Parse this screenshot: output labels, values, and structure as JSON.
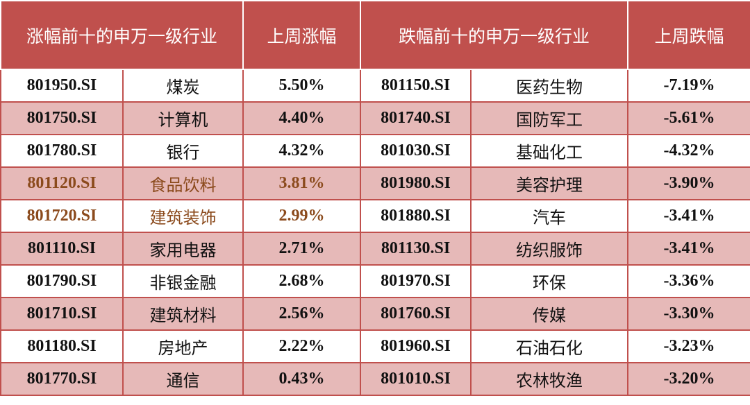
{
  "colors": {
    "header_bg": "#c0504d",
    "header_text": "#ffffff",
    "band_even": "#e6b9b8",
    "band_odd": "#ffffff",
    "highlight_text": "#8b4a1c"
  },
  "headers": [
    "涨幅前十的申万一级行业",
    "上周涨幅",
    "跌幅前十的申万一级行业",
    "上周跌幅"
  ],
  "rows": [
    {
      "up_code": "801950.SI",
      "up_name": "煤炭",
      "up_pct": "5.50%",
      "down_code": "801150.SI",
      "down_name": "医药生物",
      "down_pct": "-7.19%",
      "highlight": false
    },
    {
      "up_code": "801750.SI",
      "up_name": "计算机",
      "up_pct": "4.40%",
      "down_code": "801740.SI",
      "down_name": "国防军工",
      "down_pct": "-5.61%",
      "highlight": false
    },
    {
      "up_code": "801780.SI",
      "up_name": "银行",
      "up_pct": "4.32%",
      "down_code": "801030.SI",
      "down_name": "基础化工",
      "down_pct": "-4.32%",
      "highlight": false
    },
    {
      "up_code": "801120.SI",
      "up_name": "食品饮料",
      "up_pct": "3.81%",
      "down_code": "801980.SI",
      "down_name": "美容护理",
      "down_pct": "-3.90%",
      "highlight": true
    },
    {
      "up_code": "801720.SI",
      "up_name": "建筑装饰",
      "up_pct": "2.99%",
      "down_code": "801880.SI",
      "down_name": "汽车",
      "down_pct": "-3.41%",
      "highlight": true
    },
    {
      "up_code": "801110.SI",
      "up_name": "家用电器",
      "up_pct": "2.71%",
      "down_code": "801130.SI",
      "down_name": "纺织服饰",
      "down_pct": "-3.41%",
      "highlight": false
    },
    {
      "up_code": "801790.SI",
      "up_name": "非银金融",
      "up_pct": "2.68%",
      "down_code": "801970.SI",
      "down_name": "环保",
      "down_pct": "-3.36%",
      "highlight": false
    },
    {
      "up_code": "801710.SI",
      "up_name": "建筑材料",
      "up_pct": "2.56%",
      "down_code": "801760.SI",
      "down_name": "传媒",
      "down_pct": "-3.30%",
      "highlight": false
    },
    {
      "up_code": "801180.SI",
      "up_name": "房地产",
      "up_pct": "2.22%",
      "down_code": "801960.SI",
      "down_name": "石油石化",
      "down_pct": "-3.23%",
      "highlight": false
    },
    {
      "up_code": "801770.SI",
      "up_name": "通信",
      "up_pct": "0.43%",
      "down_code": "801010.SI",
      "down_name": "农林牧渔",
      "down_pct": "-3.20%",
      "highlight": false
    }
  ]
}
